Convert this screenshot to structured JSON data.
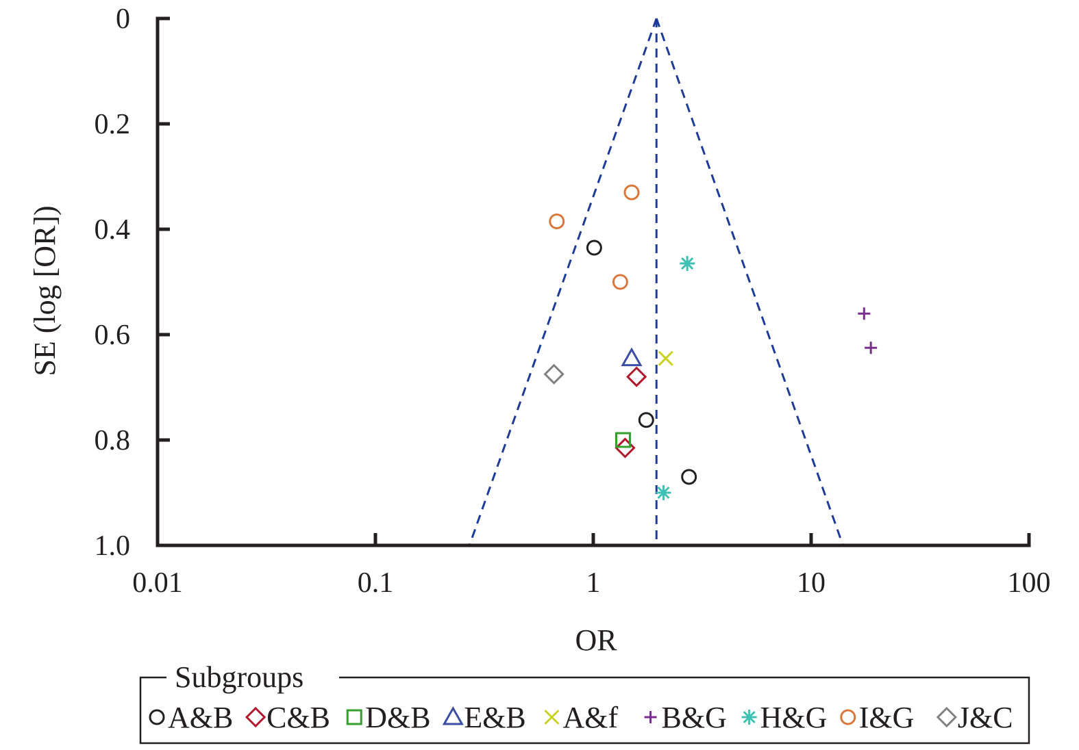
{
  "chart_data": {
    "type": "scatter",
    "title": "",
    "xlabel": "OR",
    "ylabel": "SE (log [OR])",
    "x_scale": "log",
    "xlim": [
      0.01,
      100
    ],
    "ylim": [
      0,
      1.0
    ],
    "y_inverted": true,
    "x_ticks": [
      "0.01",
      "0.1",
      "1",
      "10",
      "100"
    ],
    "y_ticks": [
      "0",
      "0.2",
      "0.4",
      "0.6",
      "0.8",
      "1.0"
    ],
    "grid": false,
    "funnel": {
      "pooled_or": 1.95,
      "color": "#1f3b99",
      "style": "dashed",
      "ci_at_se_1": [
        0.27,
        14.0
      ]
    },
    "legend": {
      "title": "Subgroups",
      "position": "bottom"
    },
    "series": [
      {
        "name": "A&B",
        "marker": "circle",
        "color": "#231f20",
        "points": [
          [
            1.01,
            0.435
          ],
          [
            1.75,
            0.762
          ],
          [
            2.75,
            0.87
          ]
        ]
      },
      {
        "name": "C&B",
        "marker": "diamond",
        "color": "#b2182b",
        "points": [
          [
            1.58,
            0.68
          ],
          [
            1.4,
            0.815
          ]
        ]
      },
      {
        "name": "D&B",
        "marker": "square",
        "color": "#33a02c",
        "points": [
          [
            1.37,
            0.8
          ]
        ]
      },
      {
        "name": "E&B",
        "marker": "triangle",
        "color": "#3b4ea3",
        "points": [
          [
            1.5,
            0.645
          ]
        ]
      },
      {
        "name": "A&f",
        "marker": "x",
        "color": "#c8d21f",
        "points": [
          [
            2.15,
            0.645
          ]
        ]
      },
      {
        "name": "B&G",
        "marker": "plus",
        "color": "#7b2d8e",
        "points": [
          [
            17.5,
            0.56
          ],
          [
            18.8,
            0.625
          ]
        ]
      },
      {
        "name": "H&G",
        "marker": "asterisk",
        "color": "#3cc1b4",
        "points": [
          [
            2.7,
            0.465
          ],
          [
            2.1,
            0.9
          ]
        ]
      },
      {
        "name": "I&G",
        "marker": "circle",
        "color": "#d9773a",
        "points": [
          [
            1.5,
            0.33
          ],
          [
            0.68,
            0.385
          ],
          [
            1.33,
            0.5
          ]
        ]
      },
      {
        "name": "J&C",
        "marker": "diamond",
        "color": "#808080",
        "points": [
          [
            0.66,
            0.675
          ]
        ]
      }
    ]
  }
}
